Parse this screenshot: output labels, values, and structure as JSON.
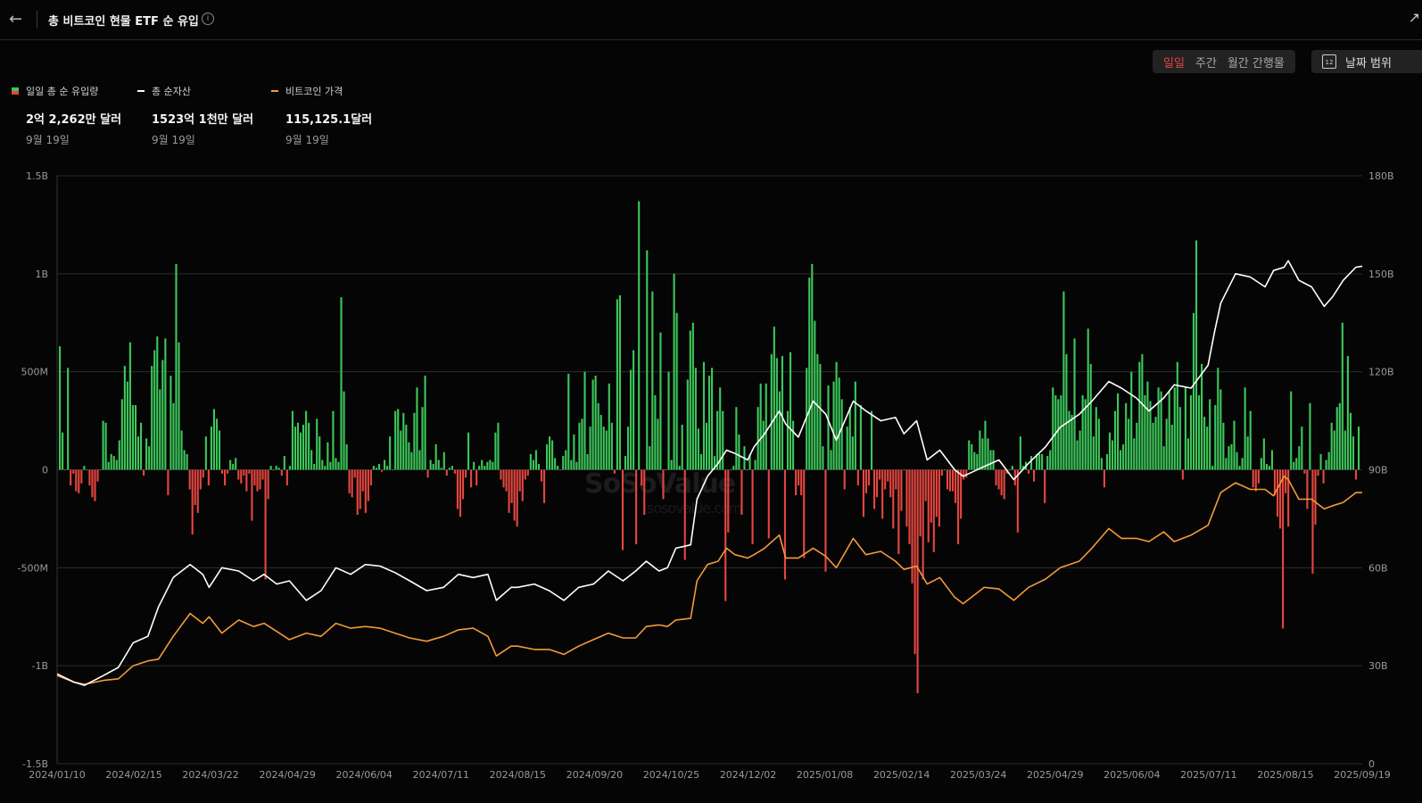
{
  "header": {
    "title": "총 비트코인 현물 ETF 순 유입",
    "back_icon": "arrow-left-icon",
    "info_icon": "info-icon"
  },
  "controls": {
    "periods": [
      "일일",
      "주간",
      "월간 간행물"
    ],
    "active_period": "일일",
    "date_range_label": "날짜 범위",
    "date_range_icon": "calendar-icon",
    "calendar_day": "12"
  },
  "legend": [
    {
      "label": "일일 총 순 유입량",
      "value": "2억 2,262만 달러",
      "date": "9월 19일"
    },
    {
      "label": "총 순자산",
      "value": "1523억 1천만 달러",
      "date": "9월 19일"
    },
    {
      "label": "비트코인 가격",
      "value": "115,125.1달러",
      "date": "9월 19일"
    }
  ],
  "watermark": {
    "brand": "SoSoValue",
    "site": "sosovalue.com"
  },
  "colors": {
    "inflow": "#3cc75a",
    "outflow": "#e5463f",
    "assets": "#ffffff",
    "price": "#f39a3a",
    "active": "#e5463f"
  },
  "chart_data": {
    "type": "bar+line",
    "x_tick_labels": [
      "2024/01/10",
      "2024/02/15",
      "2024/03/22",
      "2024/04/29",
      "2024/06/04",
      "2024/07/11",
      "2024/08/15",
      "2024/09/20",
      "2024/10/25",
      "2024/12/02",
      "2025/01/08",
      "2025/02/14",
      "2025/03/24",
      "2025/04/29",
      "2025/06/04",
      "2025/07/11",
      "2025/08/15",
      "2025/09/19"
    ],
    "y_left": {
      "ticks": [
        "1.5B",
        "1B",
        "500M",
        "0",
        "-500M",
        "-1B",
        "-1.5B"
      ],
      "range": [
        -1.5,
        1.5
      ],
      "unit": "B USD"
    },
    "y_right": {
      "ticks": [
        "180B",
        "150B",
        "120B",
        "90B",
        "60B",
        "30B",
        "0"
      ],
      "range": [
        0,
        180
      ],
      "unit": "B USD"
    },
    "grid": true,
    "series": [
      {
        "name": "일일 총 순 유입량",
        "kind": "bar",
        "values_B": [
          0.63,
          0.19,
          0.0,
          0.52,
          -0.08,
          -0.02,
          -0.11,
          -0.12,
          -0.07,
          0.02,
          0.0,
          -0.08,
          -0.14,
          -0.16,
          -0.06,
          0.0,
          0.25,
          0.24,
          0.04,
          0.08,
          0.07,
          0.05,
          0.15,
          0.36,
          0.53,
          0.45,
          0.65,
          0.33,
          0.33,
          0.17,
          0.24,
          -0.03,
          0.16,
          0.12,
          0.53,
          0.61,
          0.68,
          0.41,
          0.56,
          0.67,
          -0.13,
          0.48,
          0.34,
          1.05,
          0.65,
          0.2,
          0.1,
          0.08,
          -0.1,
          -0.33,
          -0.18,
          -0.22,
          -0.1,
          -0.04,
          0.17,
          -0.08,
          0.22,
          0.31,
          0.26,
          0.2,
          -0.02,
          -0.08,
          -0.02,
          0.05,
          0.03,
          0.06,
          -0.05,
          -0.07,
          -0.03,
          -0.11,
          -0.02,
          -0.26,
          -0.08,
          -0.11,
          -0.1,
          -0.05,
          -0.56,
          -0.15,
          0.02,
          0.0,
          0.02,
          0.01,
          -0.03,
          0.07,
          -0.08,
          0.02,
          0.3,
          0.22,
          0.24,
          0.19,
          0.23,
          0.3,
          0.24,
          0.1,
          0.03,
          0.26,
          0.17,
          0.05,
          0.02,
          0.14,
          0.04,
          0.3,
          0.06,
          0.04,
          0.88,
          0.4,
          0.13,
          -0.12,
          -0.14,
          -0.04,
          -0.23,
          -0.2,
          -0.11,
          -0.22,
          -0.16,
          -0.08,
          0.02,
          0.01,
          0.03,
          -0.01,
          0.05,
          0.02,
          0.17,
          0.0,
          0.3,
          0.31,
          0.2,
          0.29,
          0.23,
          0.14,
          0.09,
          0.29,
          0.42,
          0.1,
          0.32,
          0.48,
          -0.04,
          0.05,
          0.03,
          0.13,
          0.05,
          0.01,
          0.09,
          -0.03,
          0.01,
          0.02,
          -0.02,
          -0.2,
          -0.24,
          -0.15,
          -0.04,
          0.19,
          -0.09,
          0.04,
          -0.08,
          0.02,
          0.05,
          0.02,
          0.04,
          0.05,
          0.04,
          0.19,
          0.24,
          -0.05,
          -0.09,
          -0.11,
          -0.22,
          -0.17,
          -0.26,
          -0.29,
          -0.11,
          -0.16,
          -0.05,
          -0.03,
          0.08,
          0.05,
          0.1,
          0.03,
          -0.06,
          -0.17,
          0.13,
          0.17,
          0.15,
          0.06,
          0.02,
          0.0,
          0.07,
          0.1,
          0.49,
          0.05,
          0.18,
          0.04,
          0.24,
          0.26,
          0.5,
          0.08,
          0.22,
          0.46,
          0.48,
          0.34,
          0.28,
          0.22,
          0.2,
          0.44,
          0.24,
          -0.02,
          0.87,
          0.89,
          -0.41,
          0.07,
          0.22,
          0.51,
          0.61,
          -0.38,
          1.37,
          -0.08,
          -0.23,
          1.12,
          0.12,
          0.91,
          0.38,
          0.26,
          0.7,
          -0.15,
          0.0,
          0.5,
          0.05,
          1.0,
          0.8,
          0.02,
          0.23,
          -0.46,
          0.46,
          0.71,
          0.75,
          0.52,
          0.21,
          0.08,
          0.55,
          0.24,
          0.48,
          0.52,
          0.07,
          0.3,
          0.42,
          0.3,
          -0.67,
          -0.32,
          0.0,
          0.02,
          0.32,
          0.18,
          -0.23,
          0.12,
          0.0,
          0.08,
          -0.38,
          0.05,
          0.32,
          0.44,
          0.25,
          0.44,
          -0.35,
          0.59,
          0.73,
          0.57,
          0.4,
          0.58,
          -0.56,
          0.3,
          0.6,
          0.25,
          -0.13,
          -0.08,
          -0.13,
          -0.45,
          0.52,
          0.98,
          1.05,
          0.76,
          0.59,
          0.54,
          0.12,
          -0.52,
          0.43,
          0.1,
          0.45,
          0.55,
          0.47,
          0.36,
          -0.1,
          0.22,
          0.32,
          0.17,
          0.45,
          -0.08,
          0.33,
          -0.24,
          -0.12,
          -0.08,
          0.3,
          -0.2,
          -0.14,
          -0.05,
          -0.25,
          -0.1,
          -0.06,
          -0.14,
          -0.3,
          -0.1,
          -0.43,
          -0.21,
          0.0,
          -0.29,
          -0.38,
          -0.58,
          -0.94,
          -1.14,
          -0.34,
          -0.56,
          -0.16,
          -0.37,
          -0.27,
          -0.42,
          -0.24,
          -0.29,
          -0.03,
          0.0,
          -0.1,
          -0.11,
          -0.11,
          -0.17,
          -0.38,
          -0.25,
          -0.05,
          -0.04,
          0.15,
          0.13,
          0.09,
          0.08,
          0.2,
          0.16,
          0.25,
          0.16,
          0.1,
          0.1,
          -0.08,
          -0.1,
          -0.13,
          -0.15,
          -0.02,
          0.0,
          0.02,
          -0.08,
          -0.32,
          0.17,
          0.02,
          0.04,
          -0.02,
          0.07,
          -0.06,
          0.08,
          0.08,
          0.08,
          -0.17,
          0.07,
          0.1,
          0.42,
          0.38,
          0.36,
          0.38,
          0.91,
          0.59,
          0.3,
          0.28,
          0.67,
          0.15,
          0.2,
          0.38,
          0.36,
          0.72,
          0.54,
          0.17,
          0.32,
          0.26,
          0.06,
          -0.09,
          0.08,
          0.19,
          0.15,
          0.3,
          0.39,
          0.1,
          0.13,
          0.34,
          0.26,
          0.5,
          0.16,
          0.24,
          0.55,
          0.59,
          0.38,
          0.45,
          0.35,
          0.24,
          0.27,
          0.42,
          0.4,
          0.12,
          0.26,
          0.4,
          0.23,
          0.42,
          0.55,
          0.32,
          -0.05,
          0.42,
          0.16,
          0.38,
          0.8,
          1.17,
          0.38,
          0.54,
          0.27,
          0.22,
          0.36,
          0.02,
          0.33,
          0.52,
          0.41,
          0.24,
          0.06,
          0.12,
          0.13,
          0.25,
          0.09,
          0.02,
          0.06,
          0.42,
          0.17,
          0.3,
          -0.09,
          -0.11,
          -0.07,
          0.06,
          0.16,
          0.03,
          0.02,
          0.1,
          -0.13,
          -0.24,
          -0.3,
          -0.81,
          -0.12,
          -0.29,
          0.4,
          0.04,
          0.06,
          0.12,
          0.22,
          -0.02,
          -0.2,
          0.34,
          -0.53,
          -0.28,
          -0.03,
          0.08,
          -0.07,
          0.05,
          0.09,
          0.24,
          0.2,
          0.32,
          0.34,
          0.75,
          0.2,
          0.58,
          0.29,
          0.17,
          -0.05,
          0.22
        ]
      },
      {
        "name": "총 순자산",
        "kind": "line",
        "axis": "right",
        "dates": [
          "2024/01/10",
          "2024/01/18",
          "2024/01/23",
          "2024/02/01",
          "2024/02/08",
          "2024/02/15",
          "2024/02/22",
          "2024/02/27",
          "2024/03/05",
          "2024/03/13",
          "2024/03/19",
          "2024/03/22",
          "2024/03/28",
          "2024/04/05",
          "2024/04/12",
          "2024/04/17",
          "2024/04/23",
          "2024/04/29",
          "2024/05/07",
          "2024/05/14",
          "2024/05/21",
          "2024/05/28",
          "2024/06/04",
          "2024/06/11",
          "2024/06/18",
          "2024/06/25",
          "2024/07/03",
          "2024/07/11",
          "2024/07/18",
          "2024/07/25",
          "2024/08/01",
          "2024/08/05",
          "2024/08/12",
          "2024/08/15",
          "2024/08/23",
          "2024/08/30",
          "2024/09/06",
          "2024/09/13",
          "2024/09/20",
          "2024/09/27",
          "2024/10/04",
          "2024/10/10",
          "2024/10/15",
          "2024/10/21",
          "2024/10/25",
          "2024/10/29",
          "2024/11/05",
          "2024/11/08",
          "2024/11/13",
          "2024/11/18",
          "2024/11/22",
          "2024/11/26",
          "2024/12/02",
          "2024/12/05",
          "2024/12/10",
          "2024/12/17",
          "2024/12/20",
          "2024/12/26",
          "2025/01/02",
          "2025/01/08",
          "2025/01/13",
          "2025/01/21",
          "2025/01/27",
          "2025/02/03",
          "2025/02/10",
          "2025/02/14",
          "2025/02/20",
          "2025/02/25",
          "2025/03/03",
          "2025/03/10",
          "2025/03/14",
          "2025/03/24",
          "2025/03/31",
          "2025/04/07",
          "2025/04/14",
          "2025/04/22",
          "2025/04/29",
          "2025/05/08",
          "2025/05/14",
          "2025/05/22",
          "2025/05/28",
          "2025/06/04",
          "2025/06/10",
          "2025/06/17",
          "2025/06/22",
          "2025/06/30",
          "2025/07/08",
          "2025/07/11",
          "2025/07/14",
          "2025/07/21",
          "2025/07/28",
          "2025/08/04",
          "2025/08/08",
          "2025/08/13",
          "2025/08/15",
          "2025/08/20",
          "2025/08/26",
          "2025/09/01",
          "2025/09/05",
          "2025/09/10",
          "2025/09/16",
          "2025/09/19"
        ],
        "values_B": [
          27.5,
          25.0,
          24.0,
          27.0,
          29.5,
          37.0,
          39.0,
          48.0,
          57.0,
          61.0,
          58.0,
          54.0,
          60.0,
          59.0,
          56.0,
          58.0,
          55.0,
          56.0,
          50.0,
          53.0,
          60.0,
          58.0,
          61.0,
          60.5,
          58.5,
          56.0,
          53.0,
          54.0,
          58.0,
          57.0,
          58.0,
          50.0,
          54.0,
          54.0,
          55.0,
          53.0,
          50.0,
          54.0,
          55.0,
          59.0,
          56.0,
          59.0,
          62.0,
          59.0,
          60.0,
          66.0,
          67.0,
          81.0,
          88.0,
          92.0,
          96.0,
          95.0,
          93.0,
          97.0,
          101.0,
          108.0,
          104.0,
          100.0,
          111.0,
          107.0,
          99.0,
          111.0,
          108.0,
          105.0,
          106.0,
          101.0,
          105.0,
          93.0,
          96.0,
          90.0,
          88.0,
          91.0,
          93.0,
          87.0,
          92.0,
          97.0,
          103.0,
          107.0,
          111.0,
          117.0,
          115.0,
          112.0,
          108.0,
          112.0,
          116.0,
          115.0,
          122.0,
          132.0,
          141.0,
          150.0,
          149.0,
          146.0,
          151.0,
          152.0,
          154.0,
          148.0,
          146.0,
          140.0,
          143.0,
          148.0,
          152.0,
          152.3
        ]
      },
      {
        "name": "비트코인 가격",
        "kind": "line",
        "axis": "right",
        "dates": [
          "2024/01/10",
          "2024/01/18",
          "2024/01/23",
          "2024/02/01",
          "2024/02/08",
          "2024/02/15",
          "2024/02/22",
          "2024/02/27",
          "2024/03/05",
          "2024/03/13",
          "2024/03/19",
          "2024/03/22",
          "2024/03/28",
          "2024/04/05",
          "2024/04/12",
          "2024/04/17",
          "2024/04/23",
          "2024/04/29",
          "2024/05/07",
          "2024/05/14",
          "2024/05/21",
          "2024/05/28",
          "2024/06/04",
          "2024/06/11",
          "2024/06/18",
          "2024/06/25",
          "2024/07/03",
          "2024/07/11",
          "2024/07/18",
          "2024/07/25",
          "2024/08/01",
          "2024/08/05",
          "2024/08/12",
          "2024/08/15",
          "2024/08/23",
          "2024/08/30",
          "2024/09/06",
          "2024/09/13",
          "2024/09/20",
          "2024/09/27",
          "2024/10/04",
          "2024/10/10",
          "2024/10/15",
          "2024/10/21",
          "2024/10/25",
          "2024/10/29",
          "2024/11/05",
          "2024/11/08",
          "2024/11/13",
          "2024/11/18",
          "2024/11/22",
          "2024/11/26",
          "2024/12/02",
          "2024/12/05",
          "2024/12/10",
          "2024/12/17",
          "2024/12/20",
          "2024/12/26",
          "2025/01/02",
          "2025/01/08",
          "2025/01/13",
          "2025/01/21",
          "2025/01/27",
          "2025/02/03",
          "2025/02/10",
          "2025/02/14",
          "2025/02/20",
          "2025/02/25",
          "2025/03/03",
          "2025/03/10",
          "2025/03/14",
          "2025/03/24",
          "2025/03/31",
          "2025/04/07",
          "2025/04/14",
          "2025/04/22",
          "2025/04/29",
          "2025/05/08",
          "2025/05/14",
          "2025/05/22",
          "2025/05/28",
          "2025/06/04",
          "2025/06/10",
          "2025/06/17",
          "2025/06/22",
          "2025/06/30",
          "2025/07/08",
          "2025/07/11",
          "2025/07/14",
          "2025/07/21",
          "2025/07/28",
          "2025/08/04",
          "2025/08/08",
          "2025/08/13",
          "2025/08/15",
          "2025/08/20",
          "2025/08/26",
          "2025/09/01",
          "2025/09/05",
          "2025/09/10",
          "2025/09/16",
          "2025/09/19"
        ],
        "values_B": [
          27.0,
          25.0,
          24.3,
          25.5,
          26.0,
          30.0,
          31.5,
          32.0,
          39.0,
          46.0,
          43.0,
          45.0,
          40.0,
          44.0,
          42.0,
          43.0,
          40.5,
          38.0,
          40.0,
          39.0,
          43.0,
          41.5,
          42.0,
          41.5,
          40.0,
          38.5,
          37.5,
          39.0,
          41.0,
          41.5,
          39.0,
          33.0,
          36.0,
          36.0,
          35.0,
          35.0,
          33.5,
          36.0,
          38.0,
          40.0,
          38.5,
          38.5,
          42.0,
          42.5,
          42.0,
          44.0,
          44.5,
          56.0,
          61.0,
          62.0,
          66.0,
          64.0,
          63.0,
          64.0,
          66.0,
          70.0,
          63.0,
          63.0,
          66.0,
          63.5,
          60.0,
          69.0,
          64.0,
          65.0,
          62.0,
          59.5,
          60.5,
          55.0,
          57.0,
          51.0,
          49.0,
          54.0,
          53.5,
          50.0,
          54.0,
          56.5,
          60.0,
          62.0,
          66.0,
          72.0,
          69.0,
          69.0,
          68.0,
          71.0,
          68.0,
          70.0,
          73.0,
          78.0,
          83.0,
          86.0,
          84.0,
          84.0,
          82.0,
          88.0,
          87.0,
          81.0,
          81.0,
          78.0,
          79.0,
          80.0,
          83.0,
          83.0
        ]
      }
    ]
  }
}
